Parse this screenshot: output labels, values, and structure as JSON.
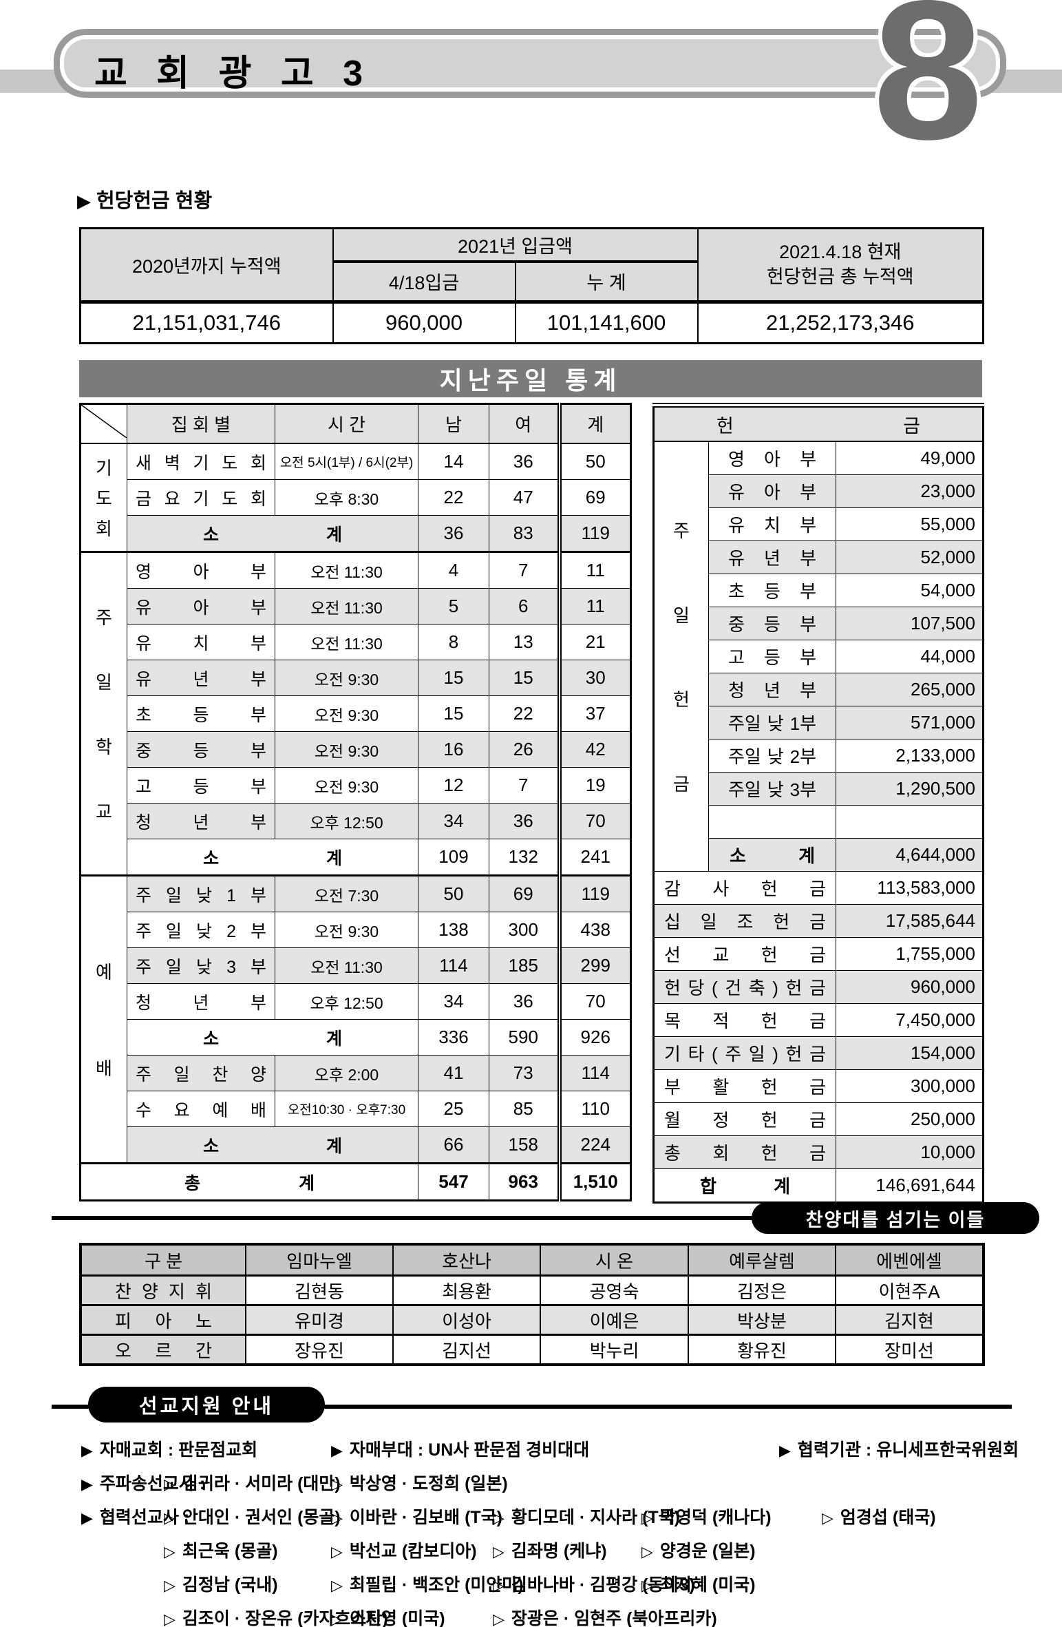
{
  "page": {
    "number": "8",
    "title": "교 회 광 고 3"
  },
  "dedication": {
    "section_title": "헌당헌금 현황",
    "col_prev": "2020년까지 누적액",
    "col_2021": "2021년 입금액",
    "col_418": "4/18입금",
    "col_cum": "누 계",
    "col_total_1": "2021.4.18 현재",
    "col_total_2": "헌당헌금 총 누적액",
    "val_prev": "21,151,031,746",
    "val_418": "960,000",
    "val_cum": "101,141,600",
    "val_total": "21,252,173,346"
  },
  "stats": {
    "title": "지난주일 통계",
    "attendance": {
      "headers": {
        "meeting": "집 회 별",
        "time": "시 간",
        "male": "남",
        "female": "여",
        "total": "계"
      },
      "groups": [
        {
          "label": "기도회",
          "span": 3
        },
        {
          "label": "주일학교",
          "span": 9
        },
        {
          "label": "예배",
          "span": 8
        }
      ],
      "rows": [
        {
          "type": "data",
          "name": "새 벽 기 도 회",
          "time": "오전 5시(1부) / 6시(2부)",
          "m": "14",
          "f": "36",
          "t": "50",
          "shaded": false
        },
        {
          "type": "data",
          "name": "금 요 기 도 회",
          "time": "오후 8:30",
          "m": "22",
          "f": "47",
          "t": "69",
          "shaded": false
        },
        {
          "type": "subtotal",
          "name": "소 계",
          "m": "36",
          "f": "83",
          "t": "119",
          "shaded": true
        },
        {
          "type": "data",
          "name": "영 아 부",
          "time": "오전 11:30",
          "m": "4",
          "f": "7",
          "t": "11",
          "shaded": false
        },
        {
          "type": "data",
          "name": "유 아 부",
          "time": "오전 11:30",
          "m": "5",
          "f": "6",
          "t": "11",
          "shaded": true
        },
        {
          "type": "data",
          "name": "유 치 부",
          "time": "오전 11:30",
          "m": "8",
          "f": "13",
          "t": "21",
          "shaded": false
        },
        {
          "type": "data",
          "name": "유 년 부",
          "time": "오전 9:30",
          "m": "15",
          "f": "15",
          "t": "30",
          "shaded": true
        },
        {
          "type": "data",
          "name": "초 등 부",
          "time": "오전 9:30",
          "m": "15",
          "f": "22",
          "t": "37",
          "shaded": false
        },
        {
          "type": "data",
          "name": "중 등 부",
          "time": "오전 9:30",
          "m": "16",
          "f": "26",
          "t": "42",
          "shaded": true
        },
        {
          "type": "data",
          "name": "고 등 부",
          "time": "오전 9:30",
          "m": "12",
          "f": "7",
          "t": "19",
          "shaded": false
        },
        {
          "type": "data",
          "name": "청 년 부",
          "time": "오후 12:50",
          "m": "34",
          "f": "36",
          "t": "70",
          "shaded": true
        },
        {
          "type": "subtotal",
          "name": "소 계",
          "m": "109",
          "f": "132",
          "t": "241",
          "shaded": false
        },
        {
          "type": "data",
          "name": "주 일 낮 1 부",
          "time": "오전 7:30",
          "m": "50",
          "f": "69",
          "t": "119",
          "shaded": true
        },
        {
          "type": "data",
          "name": "주 일 낮 2 부",
          "time": "오전 9:30",
          "m": "138",
          "f": "300",
          "t": "438",
          "shaded": false
        },
        {
          "type": "data",
          "name": "주 일 낮 3 부",
          "time": "오전 11:30",
          "m": "114",
          "f": "185",
          "t": "299",
          "shaded": true
        },
        {
          "type": "data",
          "name": "청 년 부",
          "time": "오후 12:50",
          "m": "34",
          "f": "36",
          "t": "70",
          "shaded": false
        },
        {
          "type": "subtotal",
          "name": "소 계",
          "m": "336",
          "f": "590",
          "t": "926",
          "shaded": false
        },
        {
          "type": "data",
          "name": "주 일 찬 양",
          "time": "오후 2:00",
          "m": "41",
          "f": "73",
          "t": "114",
          "shaded": true
        },
        {
          "type": "data",
          "name": "수 요 예 배",
          "time": "오전10:30 · 오후7:30",
          "m": "25",
          "f": "85",
          "t": "110",
          "shaded": false
        },
        {
          "type": "subtotal",
          "name": "소 계",
          "m": "66",
          "f": "158",
          "t": "224",
          "shaded": true
        },
        {
          "type": "grand",
          "name": "총 계",
          "m": "547",
          "f": "963",
          "t": "1,510",
          "shaded": false
        }
      ]
    },
    "offering": {
      "header": "헌 금",
      "group_label": "주일헌금",
      "group_span": 13,
      "rows": [
        {
          "type": "data",
          "label": "영 아 부",
          "value": "49,000",
          "shaded": false
        },
        {
          "type": "data",
          "label": "유 아 부",
          "value": "23,000",
          "shaded": true
        },
        {
          "type": "data",
          "label": "유 치 부",
          "value": "55,000",
          "shaded": false
        },
        {
          "type": "data",
          "label": "유 년 부",
          "value": "52,000",
          "shaded": true
        },
        {
          "type": "data",
          "label": "초 등 부",
          "value": "54,000",
          "shaded": false
        },
        {
          "type": "data",
          "label": "중 등 부",
          "value": "107,500",
          "shaded": true
        },
        {
          "type": "data",
          "label": "고 등 부",
          "value": "44,000",
          "shaded": false
        },
        {
          "type": "data",
          "label": "청 년 부",
          "value": "265,000",
          "shaded": true
        },
        {
          "type": "data",
          "label": "주일 낮 1부",
          "value": "571,000",
          "shaded": true
        },
        {
          "type": "data",
          "label": "주일 낮 2부",
          "value": "2,133,000",
          "shaded": false
        },
        {
          "type": "data",
          "label": "주일 낮 3부",
          "value": "1,290,500",
          "shaded": true
        },
        {
          "type": "data",
          "label": "",
          "value": "",
          "shaded": false
        },
        {
          "type": "subtotal",
          "label": "소 계",
          "value": "4,644,000",
          "shaded": true
        },
        {
          "type": "full",
          "label": "감 사 헌 금",
          "value": "113,583,000",
          "shaded": false
        },
        {
          "type": "full",
          "label": "십 일 조 헌 금",
          "value": "17,585,644",
          "shaded": true
        },
        {
          "type": "full",
          "label": "선 교 헌 금",
          "value": "1,755,000",
          "shaded": false
        },
        {
          "type": "full",
          "label": "헌 당 ( 건 축 ) 헌 금",
          "value": "960,000",
          "shaded": true
        },
        {
          "type": "full",
          "label": "목 적 헌 금",
          "value": "7,450,000",
          "shaded": false
        },
        {
          "type": "full",
          "label": "기 타 ( 주 일 ) 헌 금",
          "value": "154,000",
          "shaded": true
        },
        {
          "type": "full",
          "label": "부 활 헌 금",
          "value": "300,000",
          "shaded": false
        },
        {
          "type": "full",
          "label": "월 정 헌 금",
          "value": "250,000",
          "shaded": false
        },
        {
          "type": "full",
          "label": "총 회 헌 금",
          "value": "10,000",
          "shaded": true
        },
        {
          "type": "total",
          "label": "합 계",
          "value": "146,691,644",
          "shaded": false
        }
      ]
    }
  },
  "choir": {
    "badge": "찬양대를 섬기는 이들",
    "headers": [
      "구 분",
      "임마누엘",
      "호산나",
      "시 온",
      "예루살렘",
      "에벤에셀"
    ],
    "rows": [
      {
        "label": "찬 양 지 휘",
        "values": [
          "김현동",
          "최용환",
          "공영숙",
          "김정은",
          "이현주A"
        ],
        "shaded": false
      },
      {
        "label": "피 아 노",
        "values": [
          "유미경",
          "이성아",
          "이예은",
          "박상분",
          "김지현"
        ],
        "shaded": true
      },
      {
        "label": "오 르 간",
        "values": [
          "장유진",
          "김지선",
          "박누리",
          "황유진",
          "장미선"
        ],
        "shaded": false
      }
    ]
  },
  "mission": {
    "badge": "선교지원 안내",
    "rows": [
      [
        {
          "col": "A",
          "marker": "solid",
          "text": "자매교회 : 판문점교회"
        },
        {
          "col": "B",
          "marker": "solid",
          "text": "자매부대 : UN사 판문점 경비대대"
        },
        {
          "col": "F",
          "marker": "solid",
          "text": "협력기관 : 유니세프한국위원회"
        }
      ],
      [
        {
          "col": "A",
          "marker": "solid",
          "text": "주파송선교사 :"
        },
        {
          "col": "A2",
          "marker": "open",
          "text": "김귀라 · 서미라 (대만)"
        },
        {
          "col": "B",
          "marker": "open",
          "text": "박상영 · 도정희 (일본)"
        }
      ],
      [
        {
          "col": "A",
          "marker": "solid",
          "text": "협력선교사 :"
        },
        {
          "col": "A2",
          "marker": "open",
          "text": "안대인 · 권서인 (몽골)"
        },
        {
          "col": "B",
          "marker": "open",
          "text": "이바란 · 김보배 (T국)"
        },
        {
          "col": "C",
          "marker": "open",
          "text": "황디모데 · 지사라 (T국)"
        },
        {
          "col": "D",
          "marker": "open",
          "text": "박영덕 (캐나다)"
        },
        {
          "col": "E",
          "marker": "open",
          "text": "엄경섭 (태국)"
        }
      ],
      [
        {
          "col": "A2",
          "marker": "open",
          "text": "최근욱 (몽골)"
        },
        {
          "col": "B",
          "marker": "open",
          "text": "박선교 (캄보디아)"
        },
        {
          "col": "C",
          "marker": "open",
          "text": "김좌명 (케냐)"
        },
        {
          "col": "D",
          "marker": "open",
          "text": "양경운 (일본)"
        }
      ],
      [
        {
          "col": "A2",
          "marker": "open",
          "text": "김정남 (국내)"
        },
        {
          "col": "B",
          "marker": "open",
          "text": "최필립 · 백조안 (미얀마)"
        },
        {
          "col": "C",
          "marker": "open",
          "text": "김바나바 · 김평강 (동아3)"
        },
        {
          "col": "D",
          "marker": "open",
          "text": "최지혜 (미국)"
        }
      ],
      [
        {
          "col": "A2",
          "marker": "open",
          "text": "김조이 · 장온유 (카자흐스탄)"
        },
        {
          "col": "B",
          "marker": "open",
          "text": "이지영 (미국)"
        },
        {
          "col": "C",
          "marker": "open",
          "text": "장광은 · 임현주 (북아프리카)"
        }
      ]
    ]
  }
}
